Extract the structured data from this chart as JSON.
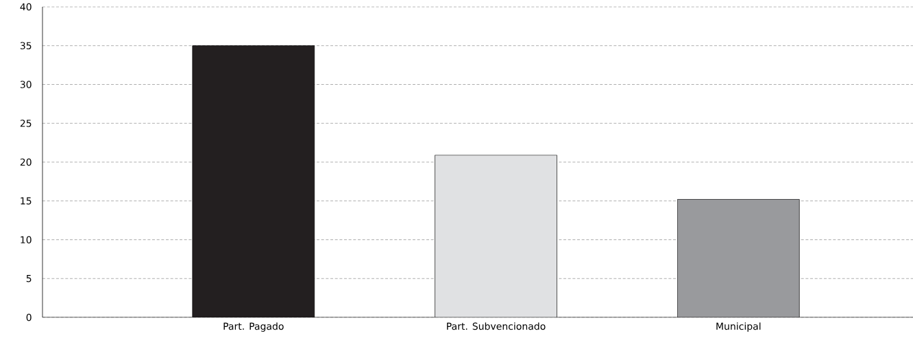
{
  "chart_data": {
    "type": "bar",
    "categories": [
      "Part. Pagado",
      "Part. Subvencionado",
      "Municipal"
    ],
    "values": [
      35,
      20.9,
      15.2
    ],
    "colors": [
      "#231f20",
      "#e0e1e3",
      "#999a9d"
    ],
    "ylim": [
      0,
      40
    ],
    "yticks": [
      0,
      5,
      10,
      15,
      20,
      25,
      30,
      35,
      40
    ],
    "grid": "y"
  }
}
